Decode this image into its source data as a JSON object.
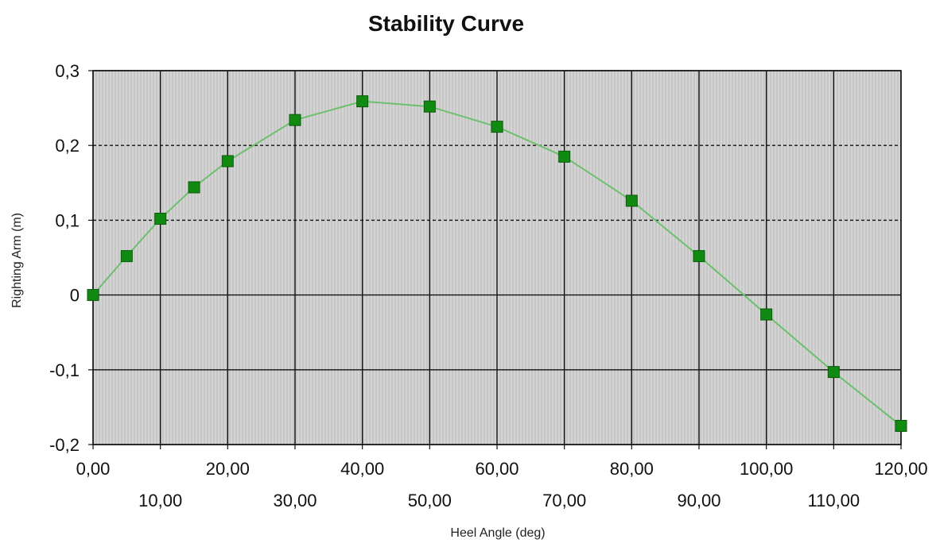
{
  "chart_data": {
    "type": "line",
    "title": "Stability Curve",
    "xlabel": "Heel Angle (deg)",
    "ylabel": "Righting Arm (m)",
    "xlim": [
      0,
      120
    ],
    "ylim": [
      -0.2,
      0.3
    ],
    "x_ticks": [
      {
        "value": 0,
        "label": "0,00"
      },
      {
        "value": 10,
        "label": "10,00"
      },
      {
        "value": 20,
        "label": "20,00"
      },
      {
        "value": 30,
        "label": "30,00"
      },
      {
        "value": 40,
        "label": "40,00"
      },
      {
        "value": 50,
        "label": "50,00"
      },
      {
        "value": 60,
        "label": "60,00"
      },
      {
        "value": 70,
        "label": "70,00"
      },
      {
        "value": 80,
        "label": "80,00"
      },
      {
        "value": 90,
        "label": "90,00"
      },
      {
        "value": 100,
        "label": "100,00"
      },
      {
        "value": 110,
        "label": "110,00"
      },
      {
        "value": 120,
        "label": "120,00"
      }
    ],
    "y_ticks": [
      {
        "value": 0.3,
        "label": "0,3"
      },
      {
        "value": 0.2,
        "label": "0,2"
      },
      {
        "value": 0.1,
        "label": "0,1"
      },
      {
        "value": 0,
        "label": "0"
      },
      {
        "value": -0.1,
        "label": "-0,1"
      },
      {
        "value": -0.2,
        "label": "-0,2"
      }
    ],
    "grid": true,
    "legend": "none",
    "colors": {
      "plot_background": "#d4d4d4",
      "line": "#6cbf6c",
      "marker": "#118a11",
      "marker_edge": "#0a5a0a",
      "grid": "#111111"
    },
    "series": [
      {
        "x": [
          0,
          5,
          10,
          15,
          20,
          30,
          40,
          50,
          60,
          70,
          80,
          90,
          100,
          110,
          120
        ],
        "values": [
          0.0,
          0.052,
          0.102,
          0.144,
          0.179,
          0.234,
          0.259,
          0.252,
          0.225,
          0.185,
          0.126,
          0.052,
          -0.026,
          -0.103,
          -0.175
        ]
      }
    ]
  }
}
